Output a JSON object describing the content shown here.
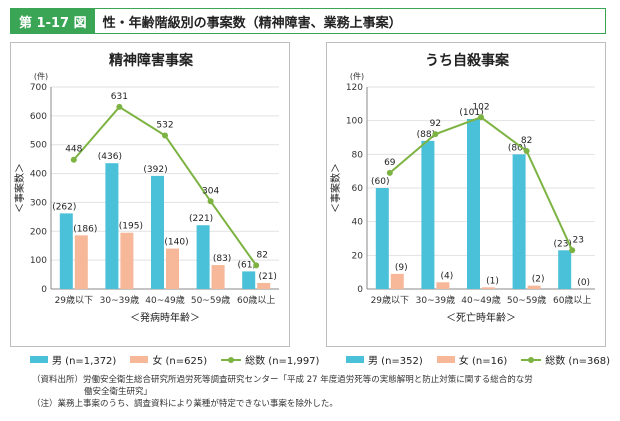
{
  "header": {
    "badge": "第 1-17 図",
    "title": "性・年齢階級別の事案数（精神障害、業務上事案）"
  },
  "chart_data": [
    {
      "type": "bar",
      "title": "精神障害事案",
      "ylabel": "＜事案数＞",
      "unit": "(件)",
      "xlabel": "＜発病時年齢＞",
      "categories": [
        "29歳以下",
        "30~39歳",
        "40~49歳",
        "50~59歳",
        "60歳以上"
      ],
      "ylim": [
        0,
        700
      ],
      "yticks": [
        0,
        100,
        200,
        300,
        400,
        500,
        600,
        700
      ],
      "series": [
        {
          "name": "男",
          "legend": "男 (n=1,372)",
          "kind": "bar",
          "color": "#4bc0d9",
          "values": [
            262,
            436,
            392,
            221,
            61
          ],
          "labels": [
            "(262)",
            "(436)",
            "(392)",
            "(221)",
            "(61)"
          ]
        },
        {
          "name": "女",
          "legend": "女 (n=625)",
          "kind": "bar",
          "color": "#f7b89a",
          "values": [
            186,
            195,
            140,
            83,
            21
          ],
          "labels": [
            "(186)",
            "(195)",
            "(140)",
            "(83)",
            "(21)"
          ]
        },
        {
          "name": "総数",
          "legend": "総数 (n=1,997)",
          "kind": "line",
          "color": "#7cb342",
          "values": [
            448,
            631,
            532,
            304,
            82
          ],
          "labels": [
            "448",
            "631",
            "532",
            "304",
            "82"
          ]
        }
      ]
    },
    {
      "type": "bar",
      "title": "うち自殺事案",
      "ylabel": "＜事案数＞",
      "unit": "(件)",
      "xlabel": "＜死亡時年齢＞",
      "categories": [
        "29歳以下",
        "30~39歳",
        "40~49歳",
        "50~59歳",
        "60歳以上"
      ],
      "ylim": [
        0,
        120
      ],
      "yticks": [
        0,
        20,
        40,
        60,
        80,
        100,
        120
      ],
      "series": [
        {
          "name": "男",
          "legend": "男 (n=352)",
          "kind": "bar",
          "color": "#4bc0d9",
          "values": [
            60,
            88,
            101,
            80,
            23
          ],
          "labels": [
            "(60)",
            "(88)",
            "(101)",
            "(80)",
            "(23)"
          ]
        },
        {
          "name": "女",
          "legend": "女 (n=16)",
          "kind": "bar",
          "color": "#f7b89a",
          "values": [
            9,
            4,
            1,
            2,
            0
          ],
          "labels": [
            "(9)",
            "(4)",
            "(1)",
            "(2)",
            "(0)"
          ]
        },
        {
          "name": "総数",
          "legend": "総数 (n=368)",
          "kind": "line",
          "color": "#7cb342",
          "values": [
            69,
            92,
            102,
            82,
            23
          ],
          "labels": [
            "69",
            "92",
            "102",
            "82",
            "23"
          ]
        }
      ]
    }
  ],
  "notes": {
    "line1": "（資料出所）労働安全衛生総合研究所過労死等調査研究センター「平成 27 年度過労死等の実態解明と防止対策に関する総合的な労",
    "line2": "働安全衛生研究」",
    "line3": "（注）業務上事案のうち、調査資料により業種が特定できない事案を除外した。"
  }
}
